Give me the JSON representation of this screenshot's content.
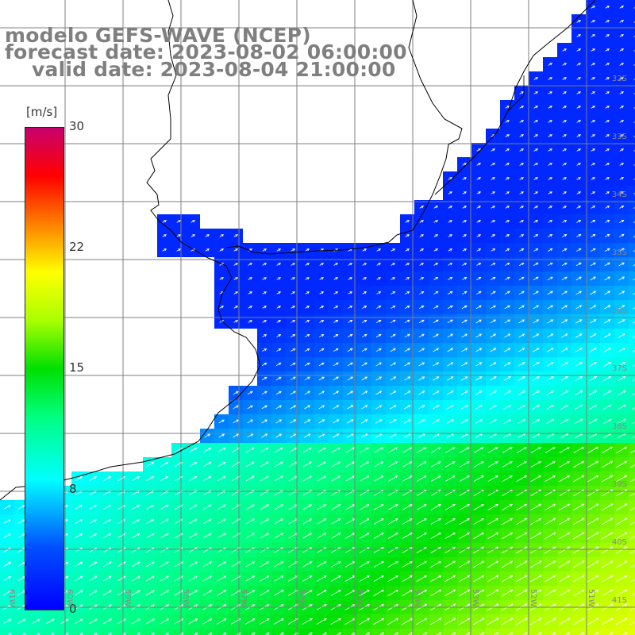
{
  "title": {
    "line1": "modelo GEFS-WAVE (NCEP)",
    "line2": "forecast date: 2023-08-02 06:00:00",
    "line3": "valid date: 2023-08-04 21:00:00"
  },
  "colorbar": {
    "unit": "[m/s]",
    "ticks": [
      "30",
      "22",
      "15",
      "8",
      "0"
    ]
  },
  "lat_labels": [
    "32S",
    "33S",
    "34S",
    "35S",
    "36S",
    "37S",
    "38S",
    "39S",
    "40S",
    "41S"
  ],
  "lon_labels": [
    "61W",
    "60W",
    "59W",
    "58W",
    "57W",
    "56W",
    "55W",
    "54W",
    "53W",
    "52W",
    "51W"
  ],
  "colors": {
    "land": "#ffffff",
    "coast": "#000000",
    "grid": "#7f7f7f",
    "title_text": "#7f7f7f"
  }
}
